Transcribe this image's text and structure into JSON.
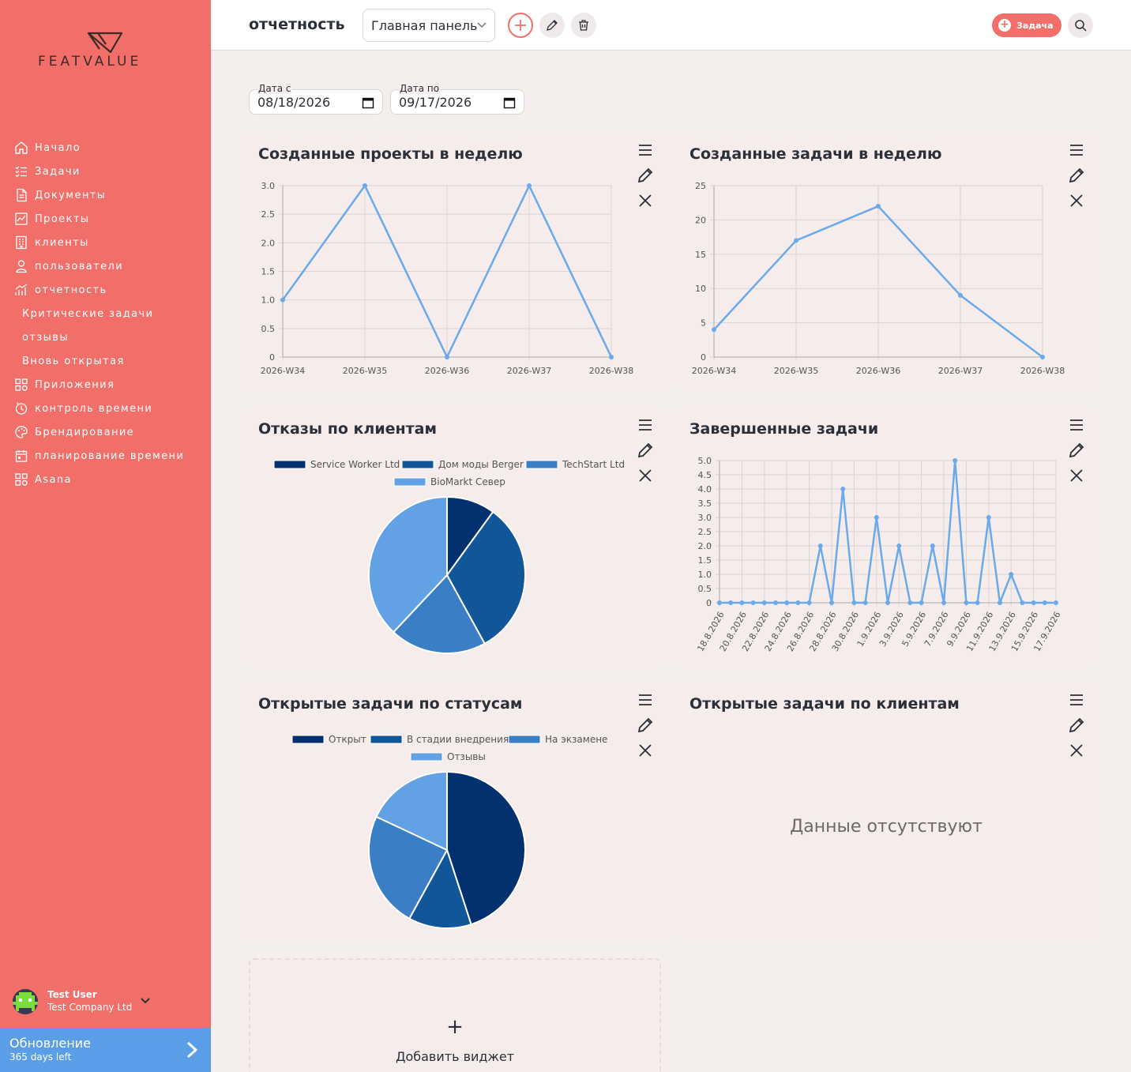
{
  "brand": {
    "name": "FEATVALUE"
  },
  "sidebar": {
    "items": [
      {
        "label": "Начало",
        "icon": "home-icon"
      },
      {
        "label": "Задачи",
        "icon": "tasks-icon"
      },
      {
        "label": "Документы",
        "icon": "documents-icon"
      },
      {
        "label": "Проекты",
        "icon": "projects-icon"
      },
      {
        "label": "клиенты",
        "icon": "clients-icon"
      },
      {
        "label": "пользователи",
        "icon": "users-icon"
      },
      {
        "label": "отчетность",
        "icon": "reports-icon"
      },
      {
        "label": "Критические задачи",
        "icon": ""
      },
      {
        "label": "отзывы",
        "icon": ""
      },
      {
        "label": "Вновь открытая",
        "icon": ""
      },
      {
        "label": "Приложения",
        "icon": "apps-icon"
      },
      {
        "label": "контроль времени",
        "icon": "timer-icon"
      },
      {
        "label": "Брендирование",
        "icon": "palette-icon"
      },
      {
        "label": "планирование времени",
        "icon": "calendar-icon"
      },
      {
        "label": "Asana",
        "icon": "apps-icon"
      }
    ],
    "user": {
      "name": "Test User",
      "company": "Test Company Ltd"
    },
    "upgrade": {
      "title": "Обновление",
      "subtitle": "365 days left"
    }
  },
  "header": {
    "title": "отчетность",
    "dashboard_select": "Главная панель",
    "task_button": "Задача"
  },
  "filters": {
    "from_label": "Дата с",
    "from_value": "08/18/2026",
    "to_label": "Дата по",
    "to_value": "09/17/2026"
  },
  "widgets": [
    {
      "title": "Созданные проекты в неделю"
    },
    {
      "title": "Созданные задачи в неделю"
    },
    {
      "title": "Отказы по клиентам"
    },
    {
      "title": "Завершенные задачи"
    },
    {
      "title": "Открытые задачи по статусам"
    },
    {
      "title": "Открытые задачи по клиентам",
      "empty_text": "Данные отсутствуют"
    }
  ],
  "add_widget_label": "Добавить виджет",
  "colors": {
    "sidebar": "#f26f69",
    "line": "#6aaaea",
    "upgrade": "#5b9ee8"
  },
  "chart_data": [
    {
      "type": "line",
      "title": "Созданные проекты в неделю",
      "categories": [
        "2026-W34",
        "2026-W35",
        "2026-W36",
        "2026-W37",
        "2026-W38"
      ],
      "values": [
        1,
        3,
        0,
        3,
        0
      ],
      "yticks": [
        "0",
        "0.5",
        "1.0",
        "1.5",
        "2.0",
        "2.5",
        "3.0"
      ],
      "ylim": [
        0,
        3
      ],
      "grid": true
    },
    {
      "type": "line",
      "title": "Созданные задачи в неделю",
      "categories": [
        "2026-W34",
        "2026-W35",
        "2026-W36",
        "2026-W37",
        "2026-W38"
      ],
      "values": [
        4,
        17,
        22,
        9,
        0
      ],
      "yticks": [
        "0",
        "5",
        "10",
        "15",
        "20",
        "25"
      ],
      "ylim": [
        0,
        25
      ],
      "grid": true
    },
    {
      "type": "pie",
      "title": "Отказы по клиентам",
      "labels": [
        "Service Worker Ltd",
        "Дом моды Berger",
        "TechStart Ltd",
        "BioMarkt Север"
      ],
      "values": [
        10,
        32,
        20,
        38
      ],
      "colors": [
        "#03316f",
        "#12569a",
        "#3a7ec5",
        "#62a2e4"
      ],
      "legend": "top"
    },
    {
      "type": "line",
      "title": "Завершенные задачи",
      "categories": [
        "18.8.2026",
        "19.8.2026",
        "20.8.2026",
        "21.8.2026",
        "22.8.2026",
        "23.8.2026",
        "24.8.2026",
        "25.8.2026",
        "26.8.2026",
        "27.8.2026",
        "28.8.2026",
        "29.8.2026",
        "30.8.2026",
        "31.8.2026",
        "1.9.2026",
        "2.9.2026",
        "3.9.2026",
        "4.9.2026",
        "5.9.2026",
        "6.9.2026",
        "7.9.2026",
        "8.9.2026",
        "9.9.2026",
        "10.9.2026",
        "11.9.2026",
        "12.9.2026",
        "13.9.2026",
        "14.9.2026",
        "15.9.2026",
        "16.9.2026",
        "17.9.2026"
      ],
      "tick_labels": [
        "18.8.2026",
        "20.8.2026",
        "22.8.2026",
        "24.8.2026",
        "26.8.2026",
        "28.8.2026",
        "30.8.2026",
        "1.9.2026",
        "3.9.2026",
        "5.9.2026",
        "7.9.2026",
        "9.9.2026",
        "11.9.2026",
        "13.9.2026",
        "15.9.2026",
        "17.9.2026"
      ],
      "values": [
        0,
        0,
        0,
        0,
        0,
        0,
        0,
        0,
        0,
        2,
        0,
        4,
        0,
        0,
        3,
        0,
        2,
        0,
        0,
        2,
        0,
        5,
        0,
        0,
        3,
        0,
        1,
        0,
        0,
        0,
        0
      ],
      "yticks": [
        "0",
        "0.5",
        "1.0",
        "1.5",
        "2.0",
        "2.5",
        "3.0",
        "3.5",
        "4.0",
        "4.5",
        "5.0"
      ],
      "ylim": [
        0,
        5
      ],
      "grid": true
    },
    {
      "type": "pie",
      "title": "Открытые задачи по статусам",
      "labels": [
        "Открыт",
        "В стадии внедрения",
        "На экзамене",
        "Отзывы"
      ],
      "values": [
        45,
        13,
        24,
        18
      ],
      "colors": [
        "#03316f",
        "#12569a",
        "#3a7ec5",
        "#62a2e4"
      ],
      "legend": "top"
    }
  ]
}
